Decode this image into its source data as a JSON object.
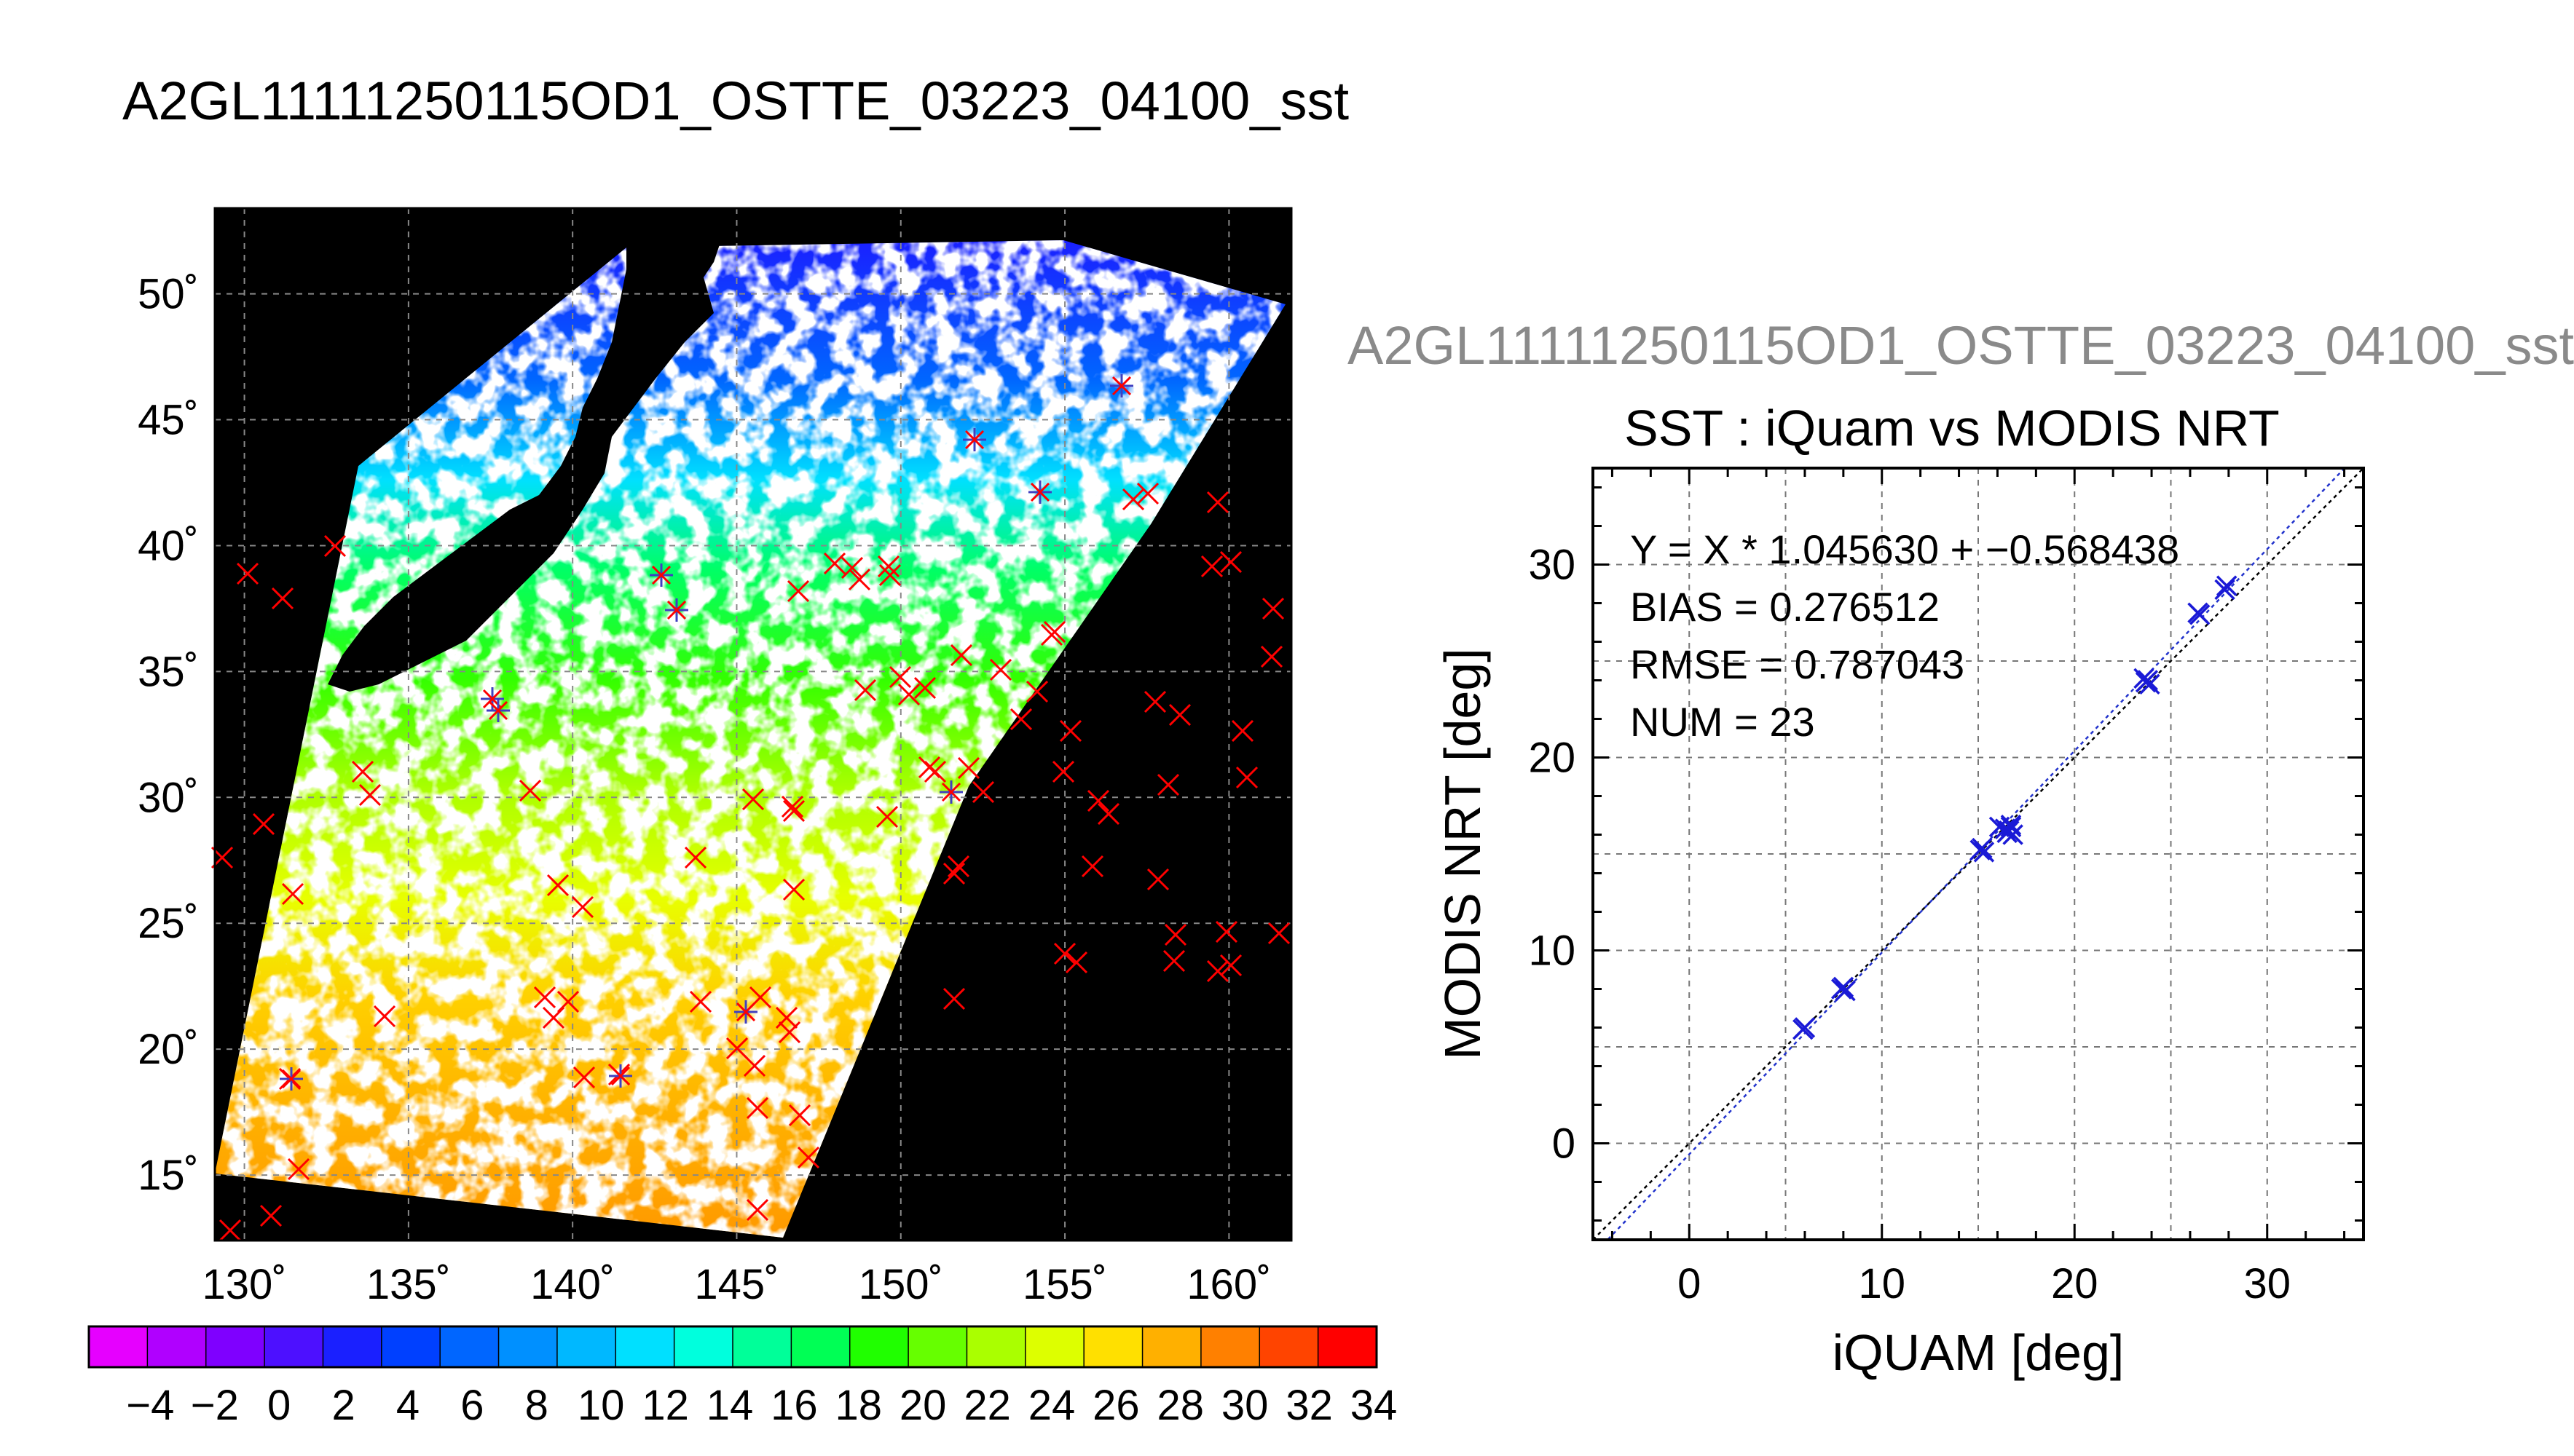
{
  "main_title": "A2GL11111250115OD1_OSTTE_03223_04100_sst",
  "right_title_gray": "A2GL11111250115OD1_OSTTE_03223_04100_sst",
  "map": {
    "lon_ticks": [
      "130˚",
      "135˚",
      "140˚",
      "145˚",
      "150˚",
      "155˚",
      "160˚"
    ],
    "lat_ticks": [
      "50˚",
      "45˚",
      "40˚",
      "35˚",
      "30˚",
      "25˚",
      "20˚",
      "15˚"
    ],
    "lon_range": [
      129.1,
      161.9
    ],
    "lat_range": [
      12.4,
      53.4
    ]
  },
  "colorbar": {
    "tick_labels": [
      "−4",
      "−2",
      "0",
      "2",
      "4",
      "6",
      "8",
      "10",
      "12",
      "14",
      "16",
      "18",
      "20",
      "22",
      "24",
      "26",
      "28",
      "30",
      "32",
      "34"
    ],
    "range": [
      -5,
      35
    ],
    "colors": [
      "#e600ff",
      "#b000ff",
      "#7f00ff",
      "#4d10ff",
      "#1a20ff",
      "#0040ff",
      "#0066ff",
      "#0090ff",
      "#00b8ff",
      "#00e0ff",
      "#00ffdd",
      "#00ff99",
      "#00ff55",
      "#20ff00",
      "#66ff00",
      "#aaff00",
      "#ddff00",
      "#ffe000",
      "#ffb000",
      "#ff8000",
      "#ff4400",
      "#ff0000"
    ]
  },
  "chart_data": {
    "type": "scatter",
    "title": "SST : iQuam vs MODIS NRT",
    "xlabel": "iQUAM [deg]",
    "ylabel": "MODIS NRT [deg]",
    "xlim": [
      -5,
      35
    ],
    "ylim": [
      -5,
      35
    ],
    "x_ticks": [
      0,
      10,
      20,
      30
    ],
    "y_ticks": [
      0,
      10,
      20,
      30
    ],
    "grid": true,
    "stats": {
      "equation": "Y = X * 1.045630 + −0.568438",
      "bias": "BIAS = 0.276512",
      "rmse": "RMSE = 0.787043",
      "num": "NUM = 23"
    },
    "fit": {
      "slope": 1.04563,
      "intercept": -0.568438
    },
    "points": [
      [
        5.9,
        5.9
      ],
      [
        7.9,
        8.0
      ],
      [
        8.1,
        7.9
      ],
      [
        15.1,
        15.2
      ],
      [
        16.1,
        16.4
      ],
      [
        16.6,
        16.2
      ],
      [
        16.7,
        16.5
      ],
      [
        16.8,
        16.0
      ],
      [
        23.6,
        24.1
      ],
      [
        23.9,
        23.8
      ],
      [
        26.5,
        27.4
      ],
      [
        27.9,
        28.9
      ],
      [
        15.3,
        15.1
      ],
      [
        16.4,
        16.3
      ],
      [
        23.7,
        23.9
      ],
      [
        26.4,
        27.5
      ],
      [
        8.0,
        8.1
      ],
      [
        6.0,
        6.0
      ],
      [
        16.5,
        16.1
      ],
      [
        27.8,
        28.7
      ],
      [
        15.2,
        15.3
      ],
      [
        23.8,
        24.0
      ],
      [
        16.7,
        16.4
      ]
    ]
  }
}
